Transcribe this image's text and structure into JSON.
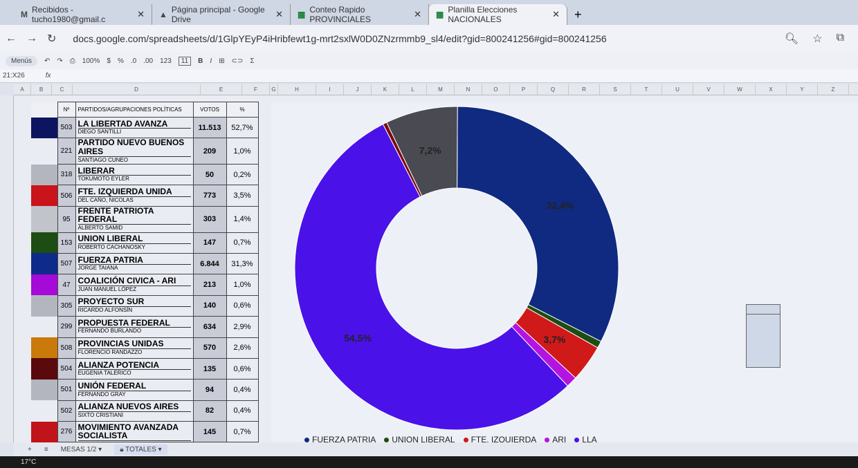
{
  "browser": {
    "tabs": [
      {
        "icon": "gmail-icon",
        "label": "Recibidos - tucho1980@gmail.c"
      },
      {
        "icon": "drive-icon",
        "label": "Página principal - Google Drive"
      },
      {
        "icon": "sheets-icon",
        "label": "Conteo Rapido PROVINCIALES"
      },
      {
        "icon": "sheets-icon",
        "label": "Planilla Elecciones NACIONALES",
        "active": true
      }
    ],
    "url": "docs.google.com/spreadsheets/d/1GlpYEyP4iHribfewt1g-mrt2sxlW0D0ZNzrmmb9_sl4/edit?gid=800241256#gid=800241256"
  },
  "toolbar": {
    "menus": "Menús",
    "zoom": "100%",
    "currency": "$",
    "percent": "%",
    "dec_less": ".0",
    "dec_more": ".00",
    "format": "123",
    "font_size": "11",
    "bold": "B",
    "italic": "I",
    "sum": "Σ"
  },
  "formula_bar": {
    "cell_ref": "21:X26",
    "fx": "fx"
  },
  "columns": [
    "A",
    "B",
    "C",
    "D",
    "E",
    "F",
    "G",
    "H",
    "I",
    "J",
    "K",
    "L",
    "M",
    "N",
    "O",
    "P",
    "Q",
    "R",
    "S",
    "T",
    "U",
    "V",
    "W",
    "X",
    "Y",
    "Z"
  ],
  "table": {
    "headers": {
      "num": "Nº",
      "party": "PARTIDOS/AGRUPACIONES POLÍTICAS",
      "votes": "VOTOS",
      "pct": "%"
    },
    "rows": [
      {
        "color": "#0d1560",
        "num": "503",
        "party": "LA LIBERTAD AVANZA",
        "candidate": "DIEGO SANTILLI",
        "votes": "11.513",
        "pct": "52,7%"
      },
      {
        "color": "",
        "num": "221",
        "party": "PARTIDO NUEVO BUENOS AIRES",
        "candidate": "SANTIAGO CUNEO",
        "votes": "209",
        "pct": "1,0%"
      },
      {
        "color": "#b4b6bf",
        "num": "318",
        "party": "LIBERAR",
        "candidate": "TOKUMOTO EYLER",
        "votes": "50",
        "pct": "0,2%"
      },
      {
        "color": "#c8141a",
        "num": "506",
        "party": "FTE. IZQUIERDA UNIDA",
        "candidate": "DEL CAÑO, NICOLAS",
        "votes": "773",
        "pct": "3,5%"
      },
      {
        "color": "#c2c4cc",
        "num": "95",
        "party": "FRENTE PATRIOTA FEDERAL",
        "candidate": "ALBERTO SAMID",
        "votes": "303",
        "pct": "1,4%"
      },
      {
        "color": "#1d4d12",
        "num": "153",
        "party": "UNION LIBERAL",
        "candidate": "ROBERTO CACHANOSKY",
        "votes": "147",
        "pct": "0,7%"
      },
      {
        "color": "#0e2a8a",
        "num": "507",
        "party": "FUERZA PATRIA",
        "candidate": "JORGE TAIANA",
        "votes": "6.844",
        "pct": "31,3%"
      },
      {
        "color": "#a50ad8",
        "num": "47",
        "party": "COALICIÓN CIVICA - ARI",
        "candidate": "JUAN MANUEL LÓPEZ",
        "votes": "213",
        "pct": "1,0%"
      },
      {
        "color": "#b4b6bf",
        "num": "305",
        "party": "PROYECTO SUR",
        "candidate": "RICARDO ALFONSÍN",
        "votes": "140",
        "pct": "0,6%"
      },
      {
        "color": "",
        "num": "299",
        "party": "PROPUESTA FEDERAL",
        "candidate": "FERNANDO BURLANDO",
        "votes": "634",
        "pct": "2,9%"
      },
      {
        "color": "#c97a0a",
        "num": "508",
        "party": "PROVINCIAS UNIDAS",
        "candidate": "FLORENCIO RANDAZZO",
        "votes": "570",
        "pct": "2,6%"
      },
      {
        "color": "#5a0a0c",
        "num": "504",
        "party": "ALIANZA POTENCIA",
        "candidate": "EUGENIA TALERICO",
        "votes": "135",
        "pct": "0,6%"
      },
      {
        "color": "#b4b6bf",
        "num": "501",
        "party": "UNIÓN FEDERAL",
        "candidate": "FERNANDO GRAY",
        "votes": "94",
        "pct": "0,4%"
      },
      {
        "color": "",
        "num": "502",
        "party": "ALIANZA NUEVOS AIRES",
        "candidate": "SIXTO CRISTIANI",
        "votes": "82",
        "pct": "0,4%"
      },
      {
        "color": "#c0141a",
        "num": "276",
        "party": "MOVIMIENTO AVANZADA SOCIALISTA",
        "candidate": "",
        "votes": "145",
        "pct": "0,7%"
      }
    ]
  },
  "chart_data": {
    "type": "pie",
    "donut": true,
    "slices": [
      {
        "value": 32.4,
        "label": "32,4%",
        "color": "#0f2a80"
      },
      {
        "value": 0.7,
        "label": "",
        "color": "#1d4d12"
      },
      {
        "value": 3.7,
        "label": "3,7%",
        "color": "#d01a1a"
      },
      {
        "value": 1.1,
        "label": "",
        "color": "#b414e0"
      },
      {
        "value": 54.5,
        "label": "54,5%",
        "color": "#4a12e8"
      },
      {
        "value": 0.4,
        "label": "",
        "color": "#7a0a10"
      },
      {
        "value": 7.2,
        "label": "7,2%",
        "color": "#4a4a52"
      }
    ],
    "legend": [
      {
        "name": "FUERZA PATRIA",
        "color": "#0f2a80"
      },
      {
        "name": "UNION LIBERAL",
        "color": "#1d4d12"
      },
      {
        "name": "FTE. IZQUIERDA",
        "color": "#d01a1a"
      },
      {
        "name": "ARI",
        "color": "#b414e0"
      },
      {
        "name": "LLA",
        "color": "#4a12e8"
      }
    ],
    "legend_position": "bottom"
  },
  "sheets": {
    "tabs": [
      "MESAS 1/2",
      "TOTALES"
    ],
    "active": "TOTALES"
  },
  "taskbar": {
    "weather": "17°C"
  }
}
